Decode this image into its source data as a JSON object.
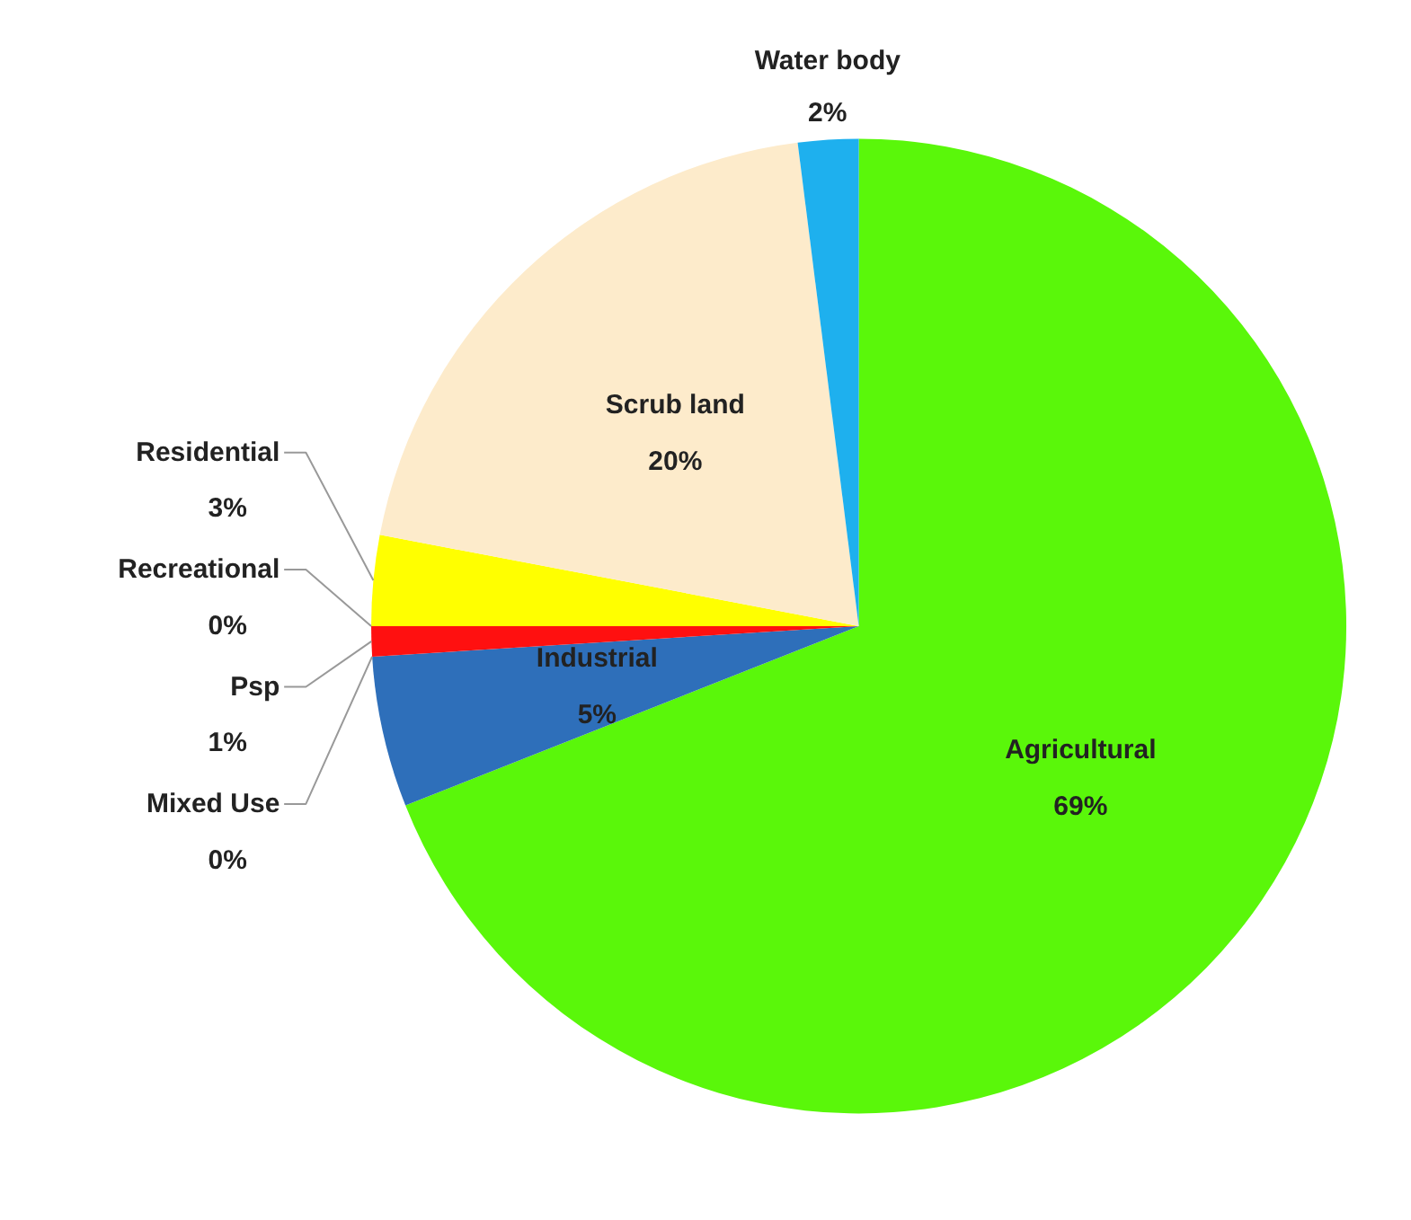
{
  "chart_data": {
    "type": "pie",
    "categories": [
      "Agricultural",
      "Industrial",
      "Mixed Use",
      "Psp",
      "Recreational",
      "Residential",
      "Scrub land",
      "Water body"
    ],
    "values": [
      69,
      5,
      0,
      1,
      0,
      3,
      20,
      2
    ],
    "value_labels": [
      "69%",
      "5%",
      "0%",
      "1%",
      "0%",
      "3%",
      "20%",
      "2%"
    ],
    "colors": [
      "#5af70a",
      "#2e6fba",
      "#e060a0",
      "#ff1010",
      "#ff9900",
      "#ffff00",
      "#fdebcb",
      "#1eb0ee"
    ]
  }
}
